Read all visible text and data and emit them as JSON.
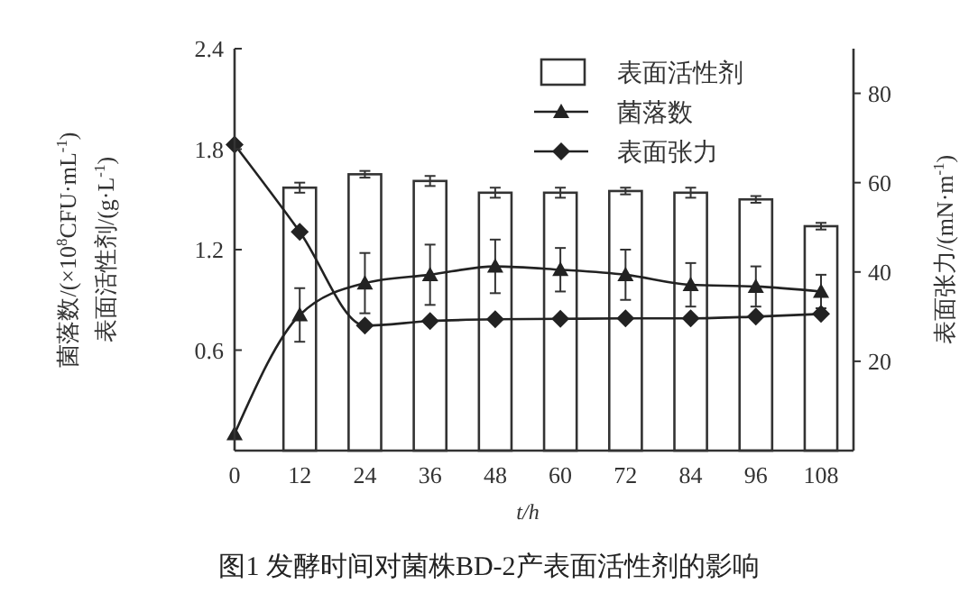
{
  "chart_data": {
    "type": "bar",
    "categories": [
      "0",
      "12",
      "24",
      "36",
      "48",
      "60",
      "72",
      "84",
      "96",
      "108"
    ],
    "xlabel": "t/h",
    "ylabel": "菌落数/(×10$^{8}$CFU·mL$^{-1}$)\n表面活性剂/(g·L$^{-1}$)",
    "y2label": "表面张力/(mN·m$^{-1}$)",
    "ylim": [
      0,
      2.4
    ],
    "yticks": [
      0.6,
      1.2,
      1.8,
      2.4
    ],
    "y2lim": [
      0,
      90
    ],
    "y2ticks": [
      20,
      40,
      60,
      80
    ],
    "legend": "top right",
    "annotations": [
      "图1 发酵时间对菌株BD-2产表面活性剂的影响"
    ],
    "series": [
      {
        "name": "表面活性剂",
        "color": "#ffffff",
        "values": [
          null,
          1.57,
          1.65,
          1.61,
          1.54,
          1.54,
          1.55,
          1.54,
          1.5,
          1.34
        ],
        "errors": [
          null,
          0.03,
          0.02,
          0.03,
          0.03,
          0.03,
          0.02,
          0.03,
          0.02,
          0.02
        ]
      },
      {
        "name": "菌落数",
        "type": "line",
        "marker": "triangle",
        "color": "#222222",
        "values": [
          0.1,
          0.81,
          1.0,
          1.05,
          1.1,
          1.08,
          1.05,
          0.99,
          0.98,
          0.95
        ],
        "errors": [
          null,
          0.16,
          0.18,
          0.18,
          0.16,
          0.13,
          0.15,
          0.13,
          0.12,
          0.1
        ]
      },
      {
        "name": "表面张力",
        "type": "line",
        "marker": "diamond",
        "axis": "y2",
        "color": "#222222",
        "values": [
          68.5,
          49,
          28,
          29,
          29.4,
          29.5,
          29.6,
          29.6,
          30,
          30.6
        ]
      }
    ]
  }
}
